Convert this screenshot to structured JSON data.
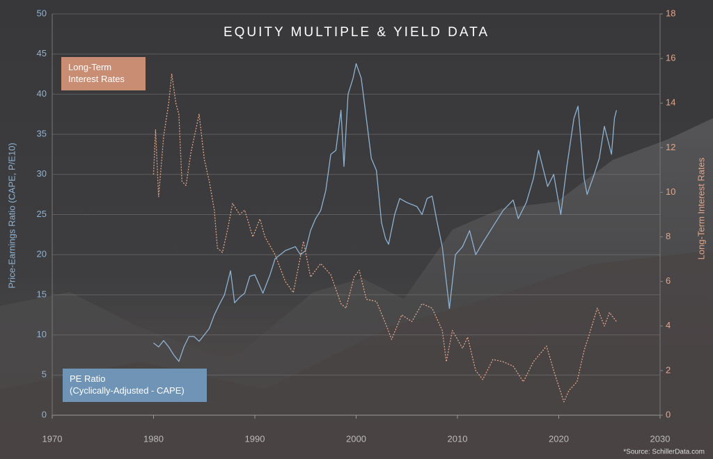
{
  "chart_data": {
    "type": "line",
    "title": "EQUITY MULTIPLE & YIELD DATA",
    "y_label": "Price-Earnings Ratio (CAPE, P/E10)",
    "y2_label": "Long-Term Interest Rates",
    "source": "*Source: SchillerData.com",
    "xlim": [
      1970,
      2030
    ],
    "xticks": [
      1970,
      1980,
      1990,
      2000,
      2010,
      2020,
      2030
    ],
    "ylim": [
      0,
      50
    ],
    "yticks": [
      0,
      5,
      10,
      15,
      20,
      25,
      30,
      35,
      40,
      45,
      50
    ],
    "y2lim": [
      0,
      18
    ],
    "y2ticks": [
      0,
      2,
      4,
      6,
      8,
      10,
      12,
      14,
      16,
      18
    ],
    "grid": true,
    "series": [
      {
        "name": "PE Ratio\n(Cyclically-Adjusted - CAPE)",
        "color": "#8fb3d3",
        "axis": "y",
        "x": [
          1980.0,
          1980.5,
          1981.0,
          1981.5,
          1982.0,
          1982.5,
          1983.0,
          1983.5,
          1984.0,
          1984.5,
          1985.0,
          1985.5,
          1986.0,
          1986.5,
          1987.0,
          1987.6,
          1988.0,
          1988.5,
          1989.0,
          1989.5,
          1990.0,
          1990.8,
          1991.5,
          1992.0,
          1993.0,
          1994.0,
          1994.5,
          1995.0,
          1995.5,
          1996.0,
          1996.5,
          1997.0,
          1997.5,
          1998.0,
          1998.5,
          1998.8,
          1999.2,
          1999.7,
          2000.0,
          2000.5,
          2001.0,
          2001.5,
          2002.0,
          2002.5,
          2002.9,
          2003.2,
          2003.8,
          2004.3,
          2005.0,
          2006.0,
          2006.5,
          2007.0,
          2007.5,
          2008.0,
          2008.5,
          2009.0,
          2009.2,
          2009.8,
          2010.5,
          2011.2,
          2011.8,
          2012.5,
          2013.5,
          2014.5,
          2015.5,
          2016.0,
          2016.8,
          2017.5,
          2018.0,
          2018.9,
          2019.5,
          2020.2,
          2020.8,
          2021.5,
          2021.9,
          2022.5,
          2022.8,
          2023.5,
          2024.0,
          2024.5,
          2025.2,
          2025.5,
          2025.7
        ],
        "values": [
          9,
          8.5,
          9.3,
          8.5,
          7.5,
          6.7,
          8.5,
          9.8,
          9.8,
          9.2,
          10,
          10.8,
          12.5,
          13.8,
          15,
          18,
          14,
          14.7,
          15.2,
          17.3,
          17.5,
          15.2,
          17.5,
          19.5,
          20.5,
          21,
          20,
          20.5,
          23,
          24.5,
          25.5,
          28,
          32.5,
          33,
          38,
          31,
          40,
          42,
          43.8,
          42,
          37,
          32,
          30.5,
          24,
          22,
          21.3,
          25,
          27,
          26.5,
          26,
          25,
          27,
          27.3,
          24,
          21,
          15.5,
          13.3,
          20,
          21,
          23,
          20,
          21.5,
          23.5,
          25.5,
          26.8,
          24.5,
          26.5,
          29.5,
          33,
          28.5,
          30,
          25,
          31,
          37,
          38.5,
          29.5,
          27.5,
          30,
          32,
          36,
          32.5,
          37,
          38
        ]
      },
      {
        "name": "Long-Term\nInterest Rates",
        "color": "#e3a588",
        "axis": "y2",
        "x": [
          1980.0,
          1980.2,
          1980.5,
          1981.0,
          1981.5,
          1981.8,
          1982.2,
          1982.5,
          1982.8,
          1983.2,
          1983.7,
          1984.5,
          1985.0,
          1985.5,
          1986.0,
          1986.3,
          1986.8,
          1987.3,
          1987.8,
          1988.5,
          1989.0,
          1989.8,
          1990.5,
          1991.0,
          1992.0,
          1993.0,
          1993.8,
          1994.8,
          1995.5,
          1996.5,
          1997.5,
          1998.5,
          1999.0,
          1999.8,
          2000.3,
          2001.0,
          2002.0,
          2003.0,
          2003.5,
          2004.5,
          2005.5,
          2006.5,
          2007.5,
          2008.5,
          2008.9,
          2009.5,
          2010.5,
          2011.0,
          2011.8,
          2012.5,
          2013.5,
          2014.5,
          2015.5,
          2016.5,
          2017.5,
          2018.8,
          2019.5,
          2020.5,
          2021.0,
          2021.8,
          2022.5,
          2023.0,
          2023.8,
          2024.5,
          2025.0,
          2025.7
        ],
        "values": [
          10.8,
          12.8,
          9.8,
          12.5,
          14,
          15.3,
          14,
          13.5,
          10.5,
          10.3,
          11.8,
          13.5,
          11.5,
          10.5,
          9.2,
          7.5,
          7.3,
          8.3,
          9.5,
          9,
          9.2,
          8,
          8.8,
          8.0,
          7.2,
          6.0,
          5.5,
          7.8,
          6.2,
          6.8,
          6.3,
          5.0,
          4.8,
          6.2,
          6.5,
          5.2,
          5.1,
          4.0,
          3.4,
          4.5,
          4.2,
          5.0,
          4.8,
          3.8,
          2.4,
          3.8,
          3.0,
          3.5,
          2.0,
          1.6,
          2.5,
          2.4,
          2.2,
          1.5,
          2.4,
          3.1,
          2.0,
          0.6,
          1.1,
          1.5,
          2.9,
          3.6,
          4.8,
          4.0,
          4.6,
          4.2
        ]
      }
    ]
  }
}
